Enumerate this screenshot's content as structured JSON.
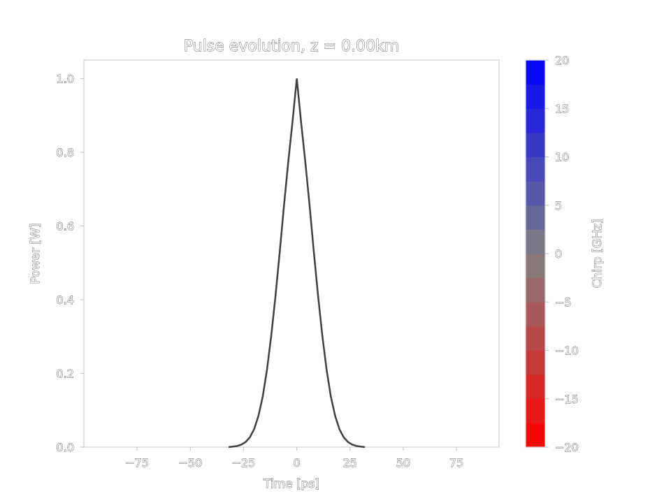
{
  "chart_data": {
    "type": "line",
    "title": "Pulse evolution, z = 0.00km",
    "xlabel": "Time [ps]",
    "ylabel": "Power [W]",
    "xlim": [
      -100,
      95
    ],
    "ylim": [
      0,
      1.05
    ],
    "x_ticks": [
      -75,
      -50,
      -25,
      0,
      25,
      50,
      75
    ],
    "x_tick_labels": [
      "−75",
      "−50",
      "−25",
      "0",
      "25",
      "50",
      "75"
    ],
    "y_ticks": [
      0.0,
      0.2,
      0.4,
      0.6,
      0.8,
      1.0
    ],
    "y_tick_labels": [
      "0.0",
      "0.2",
      "0.4",
      "0.6",
      "0.8",
      "1.0"
    ],
    "grid": false,
    "line_color": "#404040",
    "series": [
      {
        "x": [
          -32,
          -28,
          -26,
          -24,
          -22,
          -20,
          -18,
          -16,
          -14,
          -12,
          -10,
          -8,
          -6,
          -4,
          -2,
          0,
          2,
          4,
          6,
          8,
          10,
          12,
          14,
          16,
          18,
          20,
          22,
          24,
          26,
          28,
          32
        ],
        "values": [
          0.0,
          0.003,
          0.007,
          0.014,
          0.027,
          0.049,
          0.085,
          0.137,
          0.21,
          0.302,
          0.41,
          0.53,
          0.656,
          0.774,
          0.883,
          1.0,
          0.883,
          0.774,
          0.656,
          0.53,
          0.41,
          0.302,
          0.21,
          0.137,
          0.085,
          0.049,
          0.027,
          0.014,
          0.007,
          0.003,
          0.0
        ]
      }
    ],
    "colorbar": {
      "label": "Chirp [GHz]",
      "range": [
        -20,
        20
      ],
      "ticks": [
        20,
        15,
        10,
        5,
        0,
        -5,
        -10,
        -15,
        -20
      ],
      "tick_labels": [
        "20",
        "15",
        "10",
        "5",
        "0",
        "−5",
        "−10",
        "−15",
        "−20"
      ],
      "color_low": "#ff0000",
      "color_mid": "#808080",
      "color_high": "#0000ff",
      "bands": 16
    }
  }
}
